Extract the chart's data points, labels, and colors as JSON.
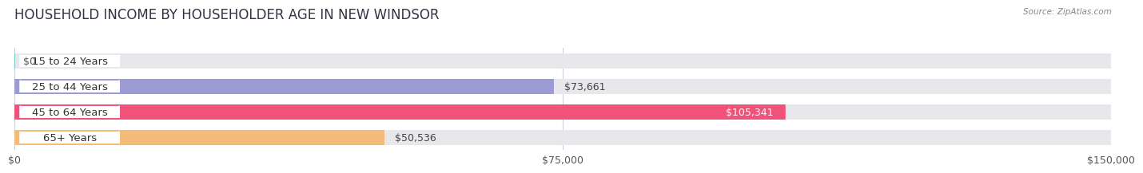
{
  "title": "HOUSEHOLD INCOME BY HOUSEHOLDER AGE IN NEW WINDSOR",
  "source": "Source: ZipAtlas.com",
  "categories": [
    "15 to 24 Years",
    "25 to 44 Years",
    "45 to 64 Years",
    "65+ Years"
  ],
  "values": [
    0,
    73661,
    105341,
    50536
  ],
  "bar_colors": [
    "#6dcece",
    "#9b9bd6",
    "#f0527a",
    "#f5bb78"
  ],
  "label_colors": [
    "#444444",
    "#444444",
    "#ffffff",
    "#444444"
  ],
  "x_max": 150000,
  "x_ticks": [
    0,
    75000,
    150000
  ],
  "x_tick_labels": [
    "$0",
    "$75,000",
    "$150,000"
  ],
  "background_color": "#ffffff",
  "bar_bg_color": "#e8e8ec",
  "title_fontsize": 12,
  "label_fontsize": 9.5,
  "value_fontsize": 9
}
